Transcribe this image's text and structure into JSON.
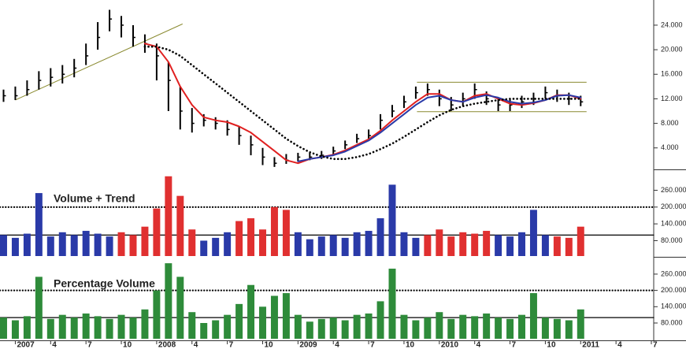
{
  "chart_data": [
    {
      "type": "ohlc",
      "x": [
        -1,
        0,
        1,
        2,
        3,
        4,
        5,
        6,
        7,
        8,
        9,
        10,
        11,
        12,
        13,
        14,
        15,
        16,
        17,
        18,
        19,
        20,
        21,
        22,
        23,
        24,
        25,
        26,
        27,
        28,
        29,
        30,
        31,
        32,
        33,
        34,
        35,
        36,
        37,
        38,
        39,
        40,
        41,
        42,
        43,
        44,
        45,
        46,
        47,
        48
      ],
      "high": [
        13.5,
        14,
        15,
        16.5,
        17,
        17.5,
        18.5,
        21,
        24.5,
        26.5,
        25.5,
        24,
        22.5,
        21,
        18,
        14,
        10.5,
        9.5,
        9,
        8.5,
        7.5,
        6,
        4,
        2.5,
        3,
        3.2,
        3.2,
        3.5,
        4.2,
        5.2,
        6.3,
        7,
        9.5,
        11,
        12.5,
        14,
        14.5,
        13.5,
        12.3,
        13,
        14.5,
        13.2,
        12,
        12,
        12.5,
        13,
        14,
        13.5,
        13,
        12.5
      ],
      "low": [
        11.5,
        11.8,
        12.5,
        13.5,
        14,
        14.5,
        15.5,
        17.5,
        20,
        23,
        22,
        20.5,
        19.5,
        15,
        10,
        7,
        6.5,
        7.5,
        7,
        6,
        4.5,
        2.8,
        1.2,
        0.9,
        1.4,
        1.8,
        2,
        2.2,
        2.8,
        3.8,
        4.8,
        5.5,
        7,
        9,
        10.5,
        12,
        12.5,
        10.8,
        10,
        10.8,
        12,
        11,
        10,
        10,
        10.5,
        11,
        12,
        11.5,
        11,
        10.8
      ],
      "close": [
        12.5,
        12.5,
        13.5,
        15,
        15.5,
        16,
        17,
        19,
        22,
        25,
        24,
        22,
        21,
        19,
        15,
        10,
        8,
        8.5,
        8,
        7,
        6,
        4.5,
        2.5,
        1.5,
        2,
        2.5,
        2.5,
        2.8,
        3.5,
        4.5,
        5.5,
        6,
        8.5,
        10,
        11.5,
        13,
        13.5,
        12,
        11,
        12,
        13.5,
        12,
        11,
        11,
        11.5,
        12,
        13,
        12.5,
        12,
        11.5
      ],
      "color": "#000000",
      "series": [
        {
          "color": "#e02020",
          "values": [
            null,
            null,
            null,
            null,
            null,
            null,
            null,
            null,
            null,
            null,
            null,
            null,
            21,
            20.5,
            18,
            14,
            11,
            9,
            8.5,
            8.2,
            7.5,
            6.5,
            5,
            3.5,
            2,
            1.5,
            2.2,
            2.5,
            2.9,
            3.6,
            4.5,
            5.4,
            6.8,
            8.5,
            10,
            11.5,
            12.8,
            12.8,
            11.8,
            11.5,
            12.5,
            12.8,
            12,
            11.2,
            11,
            11.3,
            11.8,
            12.6,
            12.6,
            12
          ]
        },
        {
          "color": "#2a3aa8",
          "values": [
            null,
            null,
            null,
            null,
            null,
            null,
            null,
            null,
            null,
            null,
            null,
            null,
            null,
            null,
            null,
            null,
            null,
            null,
            null,
            null,
            null,
            null,
            null,
            null,
            null,
            1.8,
            2.2,
            2.5,
            2.8,
            3.4,
            4.3,
            5.2,
            6.5,
            8,
            9.5,
            11,
            12.2,
            12.5,
            11.8,
            11.5,
            12.2,
            12.6,
            12.2,
            11.5,
            11.2,
            11.4,
            11.8,
            12.5,
            12.6,
            12.2
          ]
        },
        {
          "color": "#000000",
          "style": "dotted",
          "values": [
            null,
            null,
            null,
            null,
            null,
            null,
            null,
            null,
            null,
            null,
            null,
            null,
            20.5,
            20.5,
            20,
            19,
            17.5,
            16,
            14.5,
            13,
            11.5,
            10,
            8.5,
            7,
            5.5,
            4.3,
            3.3,
            2.6,
            2.2,
            2.2,
            2.5,
            3,
            3.8,
            4.7,
            5.8,
            7,
            8.2,
            9.3,
            10.2,
            10.8,
            11.2,
            11.5,
            11.8,
            12,
            12,
            12,
            12,
            12,
            12,
            12
          ]
        }
      ],
      "trendlines": [
        {
          "x": [
            0,
            14.2
          ],
          "y": [
            11.8,
            24.2
          ]
        },
        {
          "x": [
            34.1,
            48.5
          ],
          "y": [
            14.7,
            14.7
          ]
        },
        {
          "x": [
            34.1,
            48.5
          ],
          "y": [
            9.9,
            9.9
          ]
        }
      ],
      "trendline_color": "#8a8a30",
      "xlim": [
        -1.3,
        54.2
      ],
      "ylim": [
        0.5,
        28.1
      ],
      "yticks": [
        {
          "value": 4,
          "label": "4.000"
        },
        {
          "value": 8,
          "label": "8.000"
        },
        {
          "value": 12,
          "label": "12.000"
        },
        {
          "value": 16,
          "label": "16.000"
        },
        {
          "value": 20,
          "label": "20.000"
        },
        {
          "value": 24,
          "label": "24.000"
        }
      ]
    },
    {
      "type": "bar",
      "title": "Volume + Trend",
      "x": [
        -1,
        0,
        1,
        2,
        3,
        4,
        5,
        6,
        7,
        8,
        9,
        10,
        11,
        12,
        13,
        14,
        15,
        16,
        17,
        18,
        19,
        20,
        21,
        22,
        23,
        24,
        25,
        26,
        27,
        28,
        29,
        30,
        31,
        32,
        33,
        34,
        35,
        36,
        37,
        38,
        39,
        40,
        41,
        42,
        43,
        44,
        45,
        46,
        47,
        48
      ],
      "values": [
        100,
        90,
        105,
        250,
        95,
        110,
        100,
        115,
        105,
        95,
        110,
        100,
        130,
        195,
        310,
        240,
        120,
        80,
        90,
        110,
        150,
        160,
        120,
        200,
        190,
        110,
        85,
        95,
        100,
        90,
        110,
        115,
        160,
        280,
        110,
        90,
        100,
        120,
        95,
        110,
        105,
        115,
        100,
        95,
        110,
        190,
        100,
        95,
        90,
        130
      ],
      "colors": [
        "#2a3aa8",
        "#2a3aa8",
        "#2a3aa8",
        "#2a3aa8",
        "#2a3aa8",
        "#2a3aa8",
        "#2a3aa8",
        "#2a3aa8",
        "#2a3aa8",
        "#2a3aa8",
        "#e03030",
        "#e03030",
        "#e03030",
        "#e03030",
        "#e03030",
        "#e03030",
        "#e03030",
        "#2a3aa8",
        "#2a3aa8",
        "#2a3aa8",
        "#e03030",
        "#e03030",
        "#e03030",
        "#e03030",
        "#e03030",
        "#2a3aa8",
        "#2a3aa8",
        "#2a3aa8",
        "#2a3aa8",
        "#2a3aa8",
        "#2a3aa8",
        "#2a3aa8",
        "#2a3aa8",
        "#2a3aa8",
        "#2a3aa8",
        "#2a3aa8",
        "#e03030",
        "#e03030",
        "#e03030",
        "#e03030",
        "#e03030",
        "#e03030",
        "#2a3aa8",
        "#2a3aa8",
        "#2a3aa8",
        "#2a3aa8",
        "#2a3aa8",
        "#e03030",
        "#e03030",
        "#e03030"
      ],
      "levels": [
        {
          "value": 200,
          "style": "dotted"
        },
        {
          "value": 100,
          "style": "solid"
        }
      ],
      "xlim": [
        -1.3,
        54.2
      ],
      "ylim": [
        25,
        315
      ],
      "yticks": [
        {
          "value": 80,
          "label": "80.000"
        },
        {
          "value": 140,
          "label": "140.000"
        },
        {
          "value": 200,
          "label": "200.000"
        },
        {
          "value": 260,
          "label": "260.000"
        }
      ]
    },
    {
      "type": "bar",
      "title": "Percentage Volume",
      "x": [
        -1,
        0,
        1,
        2,
        3,
        4,
        5,
        6,
        7,
        8,
        9,
        10,
        11,
        12,
        13,
        14,
        15,
        16,
        17,
        18,
        19,
        20,
        21,
        22,
        23,
        24,
        25,
        26,
        27,
        28,
        29,
        30,
        31,
        32,
        33,
        34,
        35,
        36,
        37,
        38,
        39,
        40,
        41,
        42,
        43,
        44,
        45,
        46,
        47,
        48
      ],
      "values": [
        100,
        90,
        105,
        250,
        95,
        110,
        100,
        115,
        105,
        95,
        110,
        100,
        130,
        200,
        300,
        250,
        120,
        80,
        90,
        110,
        150,
        220,
        140,
        180,
        190,
        110,
        85,
        95,
        100,
        90,
        110,
        115,
        160,
        280,
        110,
        90,
        100,
        120,
        95,
        110,
        105,
        115,
        100,
        95,
        110,
        190,
        100,
        95,
        90,
        130
      ],
      "color": "#2e8b3a",
      "levels": [
        {
          "value": 200,
          "style": "dotted"
        },
        {
          "value": 100,
          "style": "solid"
        }
      ],
      "xlim": [
        -1.3,
        54.2
      ],
      "ylim": [
        22,
        312
      ],
      "yticks": [
        {
          "value": 80,
          "label": "80.000"
        },
        {
          "value": 140,
          "label": "140.000"
        },
        {
          "value": 200,
          "label": "200.000"
        },
        {
          "value": 260,
          "label": "260.000"
        }
      ],
      "xticks": [
        {
          "value": 0,
          "label": "2007"
        },
        {
          "value": 3,
          "label": "4"
        },
        {
          "value": 6,
          "label": "7"
        },
        {
          "value": 9,
          "label": "10"
        },
        {
          "value": 12,
          "label": "2008"
        },
        {
          "value": 15,
          "label": "4"
        },
        {
          "value": 18,
          "label": "7"
        },
        {
          "value": 21,
          "label": "10"
        },
        {
          "value": 24,
          "label": "2009"
        },
        {
          "value": 27,
          "label": "4"
        },
        {
          "value": 30,
          "label": "7"
        },
        {
          "value": 33,
          "label": "10"
        },
        {
          "value": 36,
          "label": "2010"
        },
        {
          "value": 39,
          "label": "4"
        },
        {
          "value": 42,
          "label": "7"
        },
        {
          "value": 45,
          "label": "10"
        },
        {
          "value": 48,
          "label": "2011"
        },
        {
          "value": 51,
          "label": "4"
        },
        {
          "value": 54,
          "label": "7"
        }
      ]
    }
  ]
}
